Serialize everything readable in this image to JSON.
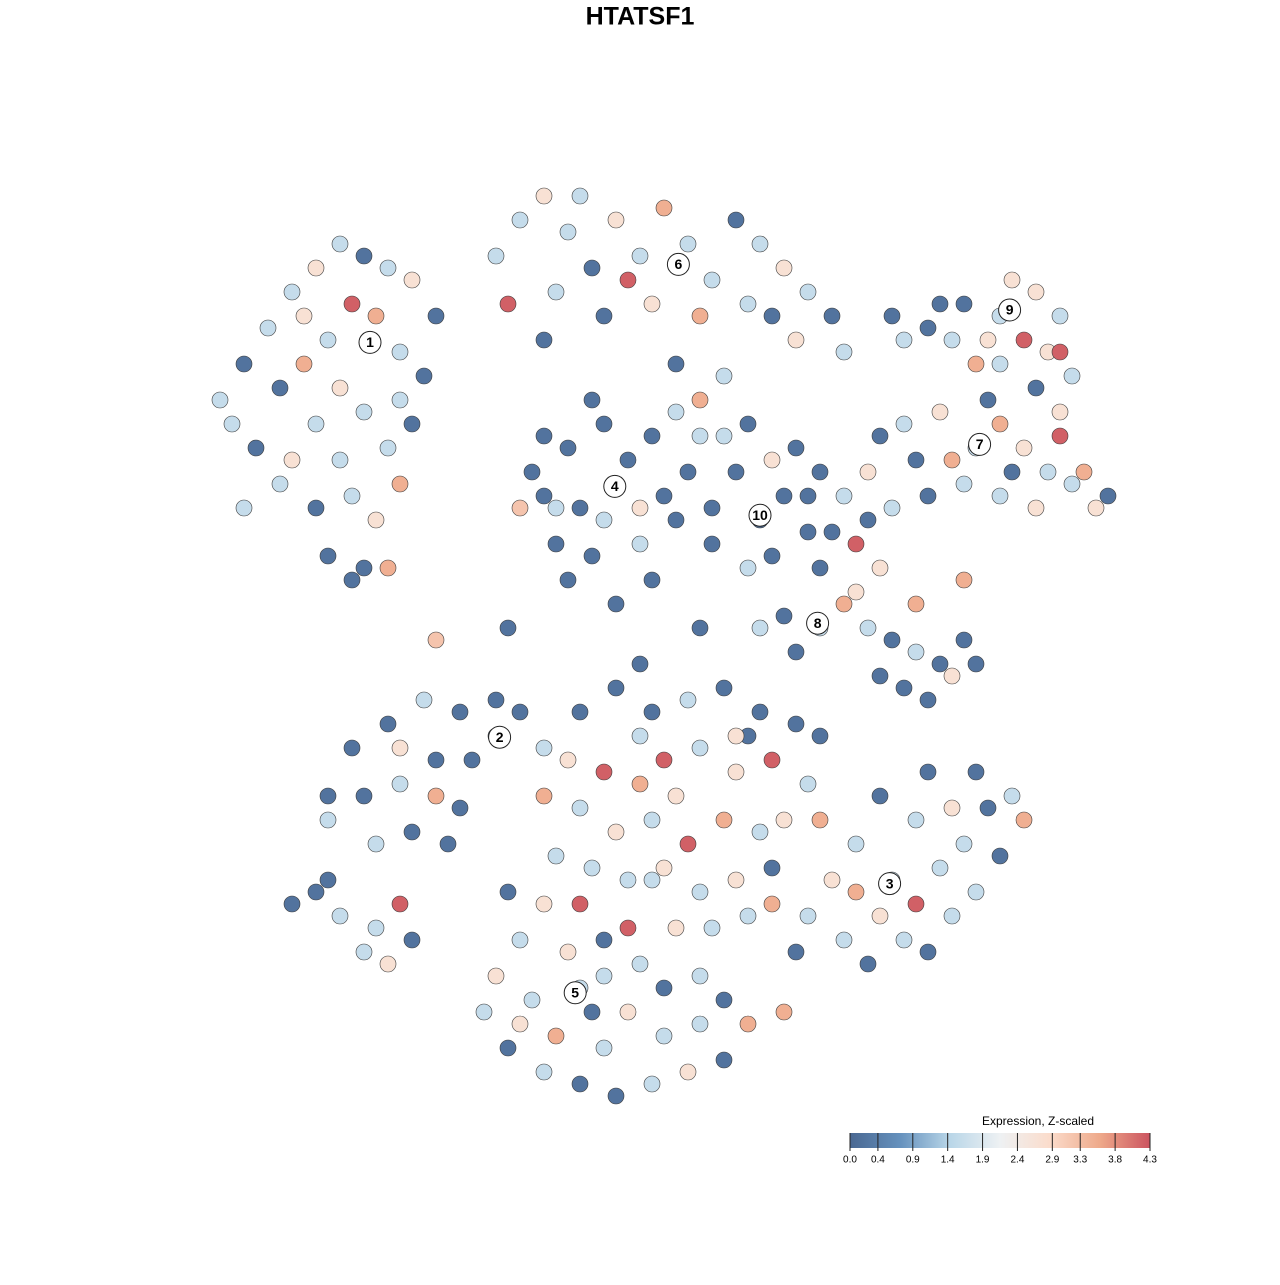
{
  "chart_data": {
    "type": "scatter",
    "title": "HTATSF1",
    "xlim": [
      -45,
      45
    ],
    "ylim": [
      -45,
      45
    ],
    "x": [
      -35,
      -33,
      -34,
      -31,
      -29,
      -27,
      -25,
      -23,
      -21,
      -19,
      -24,
      -22,
      -26,
      -28,
      -30,
      -25,
      -20,
      -18,
      -23,
      -27,
      -29,
      -25,
      -21,
      -19,
      -24,
      -27,
      -22,
      -20,
      -26,
      -23,
      -24,
      -30,
      -32,
      -17,
      -20,
      -28,
      -33,
      -21,
      -12,
      -10,
      -8,
      -6,
      -4,
      -2,
      0,
      2,
      4,
      6,
      8,
      10,
      12,
      14,
      16,
      -11,
      -7,
      -3,
      1,
      5,
      9,
      13,
      3,
      7,
      -8,
      -1,
      11,
      17,
      5,
      -5,
      -2,
      -8,
      -6,
      -3,
      1,
      4,
      3,
      0,
      -4,
      -7,
      -9,
      -5,
      2,
      -1,
      -6,
      5,
      -10,
      -3,
      1,
      -4,
      6,
      -8,
      3,
      -2,
      -7,
      0,
      10,
      8,
      12,
      11,
      9,
      13,
      7,
      14,
      6,
      11,
      15,
      9,
      30,
      27,
      24,
      22,
      33,
      35,
      34,
      32,
      36,
      29,
      26,
      31,
      28,
      25,
      35,
      33,
      21,
      30,
      35,
      28,
      25,
      22,
      20,
      26,
      30,
      32,
      34,
      36,
      38,
      39,
      30,
      33,
      27,
      23,
      31,
      35,
      19,
      24,
      37,
      29,
      21,
      15,
      12,
      10,
      13,
      17,
      19,
      21,
      23,
      25,
      27,
      22,
      26,
      20,
      18,
      23,
      27,
      16,
      18,
      15,
      20,
      17,
      19,
      14,
      24,
      28,
      -12,
      -15,
      -18,
      -21,
      -24,
      -26,
      -23,
      -20,
      -17,
      -14,
      -10,
      -8,
      -19,
      -16,
      -22,
      -26,
      -17,
      -12,
      -20,
      -15,
      -5,
      -2,
      1,
      4,
      7,
      10,
      13,
      15,
      -6,
      -3,
      0,
      2,
      5,
      8,
      11,
      14,
      -5,
      -2,
      1,
      4,
      7,
      10,
      12,
      -4,
      -1,
      2,
      5,
      8,
      11,
      -7,
      -5,
      3,
      6,
      9,
      -3,
      0,
      3,
      9,
      -8,
      0,
      21,
      18,
      16,
      14,
      13,
      17,
      20,
      23,
      25,
      27,
      29,
      31,
      32,
      26,
      23,
      20,
      24,
      28,
      22,
      19,
      26,
      30,
      15,
      18,
      11,
      24,
      28,
      -5,
      -10,
      -12,
      -13,
      -11,
      -8,
      -5,
      -2,
      1,
      4,
      7,
      9,
      5,
      2,
      -1,
      -3,
      0,
      -6,
      -9,
      -7,
      -3,
      -1,
      -8,
      2,
      -11,
      5,
      7,
      -4,
      -10,
      -29,
      -27,
      -25,
      -22,
      -20,
      -23,
      -21,
      -19,
      -26,
      -17,
      -11,
      5,
      12,
      1,
      8
    ],
    "y": [
      20,
      23,
      18,
      26,
      29,
      31,
      33,
      32,
      31,
      30,
      28,
      27,
      25,
      23,
      21,
      21,
      24,
      22,
      19,
      18,
      15,
      15,
      16,
      18,
      12,
      11,
      10,
      13,
      7,
      6,
      5,
      13,
      16,
      27,
      20,
      27,
      11,
      6,
      32,
      35,
      37,
      34,
      31,
      35,
      32,
      36,
      33,
      30,
      35,
      33,
      31,
      29,
      27,
      28,
      29,
      27,
      28,
      27,
      28,
      25,
      23,
      22,
      25,
      30,
      27,
      24,
      20,
      37,
      13,
      12,
      16,
      18,
      17,
      14,
      10,
      8,
      7,
      8,
      14,
      11,
      12,
      15,
      5,
      17,
      11,
      10,
      5,
      20,
      11,
      17,
      19,
      3,
      11,
      11,
      10,
      14,
      12,
      7,
      6,
      16,
      17,
      9,
      8,
      15,
      14,
      18,
      27,
      28,
      26,
      25,
      29,
      27,
      24,
      25,
      22,
      25,
      25,
      30,
      23,
      28,
      19,
      21,
      27,
      23,
      24,
      16,
      19,
      18,
      17,
      15,
      18,
      16,
      14,
      13,
      11,
      12,
      12,
      11,
      13,
      15,
      14,
      17,
      14,
      12,
      14,
      20,
      11,
      1,
      2,
      1,
      -1,
      3,
      1,
      0,
      -1,
      -2,
      0,
      -4,
      -3,
      -3,
      4,
      3,
      5,
      9,
      8,
      6,
      6,
      12,
      10,
      12,
      -5,
      -2,
      -8,
      -6,
      -5,
      -7,
      -9,
      -13,
      -13,
      -12,
      -10,
      -10,
      -6,
      -9,
      -16,
      -17,
      -17,
      -15,
      -13,
      -5,
      -9,
      -14,
      -6,
      -4,
      -6,
      -5,
      -4,
      -6,
      -7,
      -8,
      -10,
      -11,
      -12,
      -10,
      -9,
      -11,
      -10,
      -12,
      -14,
      -16,
      -15,
      -17,
      -15,
      -16,
      -15,
      -19,
      -20,
      -19,
      -21,
      -20,
      -19,
      -18,
      -22,
      -24,
      -24,
      -23,
      -25,
      -8,
      -13,
      -8,
      -13,
      -2,
      -20,
      -17,
      -20,
      -23,
      -26,
      -25,
      -23,
      -22,
      -19,
      -17,
      -14,
      -13,
      -15,
      -14,
      -15,
      -13,
      -11,
      -11,
      -25,
      -27,
      -23,
      -18,
      -15,
      -21,
      -22,
      -26,
      -21,
      -29,
      -25,
      -28,
      -31,
      -34,
      -36,
      -37,
      -38,
      -37,
      -36,
      -35,
      -32,
      -32,
      -33,
      -31,
      -28,
      -27,
      -26,
      -30,
      -33,
      -34,
      -24,
      -22,
      -29,
      -21,
      -28,
      -30,
      -31,
      -32,
      -22,
      -21,
      -23,
      -24,
      -22,
      -26,
      -27,
      -25,
      -20,
      0,
      1,
      1,
      -31,
      -20,
      -8
    ],
    "values": [
      1.6,
      0.2,
      1.6,
      1.6,
      1.6,
      2.7,
      1.6,
      0.2,
      1.6,
      2.7,
      4.2,
      3.5,
      1.6,
      3.5,
      0.2,
      2.7,
      1.6,
      0.2,
      1.6,
      1.6,
      2.7,
      1.6,
      1.6,
      0.2,
      1.6,
      0.2,
      2.7,
      3.5,
      0.2,
      0.2,
      0.2,
      1.6,
      0.2,
      0.2,
      1.6,
      2.7,
      1.6,
      3.5,
      1.6,
      1.6,
      2.7,
      1.6,
      0.2,
      2.7,
      1.6,
      3.5,
      1.6,
      1.6,
      0.2,
      1.6,
      2.7,
      1.6,
      0.2,
      4.2,
      1.6,
      0.2,
      2.7,
      3.5,
      1.6,
      2.7,
      0.2,
      1.6,
      0.2,
      4.2,
      0.2,
      1.6,
      3.5,
      1.6,
      1.6,
      0.2,
      0.2,
      0.2,
      0.2,
      0.2,
      0.2,
      1.6,
      0.2,
      0.2,
      0.2,
      0.2,
      0.2,
      0.2,
      0.2,
      1.6,
      3.2,
      1.6,
      0.2,
      0.2,
      0.2,
      0.2,
      1.6,
      0.2,
      1.6,
      2.7,
      0.2,
      0.2,
      0.2,
      0.2,
      1.6,
      0.2,
      1.6,
      0.2,
      0.2,
      2.7,
      0.2,
      0.2,
      1.6,
      0.2,
      0.2,
      1.6,
      2.7,
      1.6,
      2.7,
      4.2,
      1.6,
      2.7,
      1.6,
      2.7,
      3.5,
      0.2,
      2.7,
      0.2,
      0.2,
      1.6,
      4.2,
      1.6,
      2.7,
      1.6,
      0.2,
      3.5,
      3.5,
      2.7,
      1.6,
      1.6,
      2.7,
      0.2,
      1.6,
      2.7,
      1.6,
      0.2,
      0.2,
      4.2,
      2.7,
      0.2,
      3.5,
      0.2,
      1.6,
      1.6,
      0.2,
      1.6,
      0.2,
      3.5,
      1.6,
      0.2,
      1.6,
      0.2,
      0.2,
      0.2,
      2.7,
      0.2,
      2.7,
      3.5,
      3.5,
      0.2,
      4.2,
      0.2,
      2.7,
      1.6,
      0.2,
      0.2,
      0.2,
      0.2,
      0.2,
      0.2,
      1.6,
      0.2,
      0.2,
      0.2,
      0.2,
      1.6,
      0.2,
      0.2,
      0.2,
      1.6,
      0.2,
      0.2,
      1.6,
      1.6,
      3.5,
      0.2,
      2.7,
      0.2,
      0.2,
      0.2,
      0.2,
      1.6,
      0.2,
      0.2,
      0.2,
      0.2,
      2.7,
      4.2,
      3.5,
      4.2,
      1.6,
      2.7,
      4.2,
      1.6,
      1.6,
      2.7,
      1.6,
      4.2,
      3.5,
      1.6,
      2.7,
      1.6,
      1.6,
      2.7,
      1.6,
      2.7,
      0.2,
      1.6,
      4.2,
      2.7,
      1.6,
      1.6,
      0.2,
      1.6,
      2.7,
      0.2,
      3.5,
      0.2,
      1.6,
      1.6,
      2.7,
      1.6,
      0.2,
      1.6,
      2.7,
      4.2,
      1.6,
      1.6,
      0.2,
      1.6,
      3.5,
      2.7,
      1.6,
      0.2,
      0.2,
      0.2,
      1.6,
      0.2,
      1.6,
      0.2,
      3.5,
      3.5,
      3.5,
      0.2,
      1.6,
      1.6,
      1.6,
      2.7,
      1.6,
      0.2,
      1.6,
      0.2,
      0.2,
      1.6,
      2.7,
      0.2,
      3.5,
      1.6,
      1.6,
      2.7,
      1.6,
      1.6,
      2.7,
      1.6,
      3.5,
      1.6,
      4.2,
      2.7,
      0.2,
      0.2,
      1.6,
      0.2,
      0.2,
      2.7,
      0.2,
      0.2,
      1.6,
      1.6,
      4.2,
      1.6,
      2.7,
      0.2,
      0.2,
      3.2,
      0.2,
      0.2,
      3.5,
      1.6,
      2.7
    ],
    "annotations": [
      {
        "text": "1",
        "x": -22.5,
        "y": 24.8
      },
      {
        "text": "2",
        "x": -11.7,
        "y": -8.1
      },
      {
        "text": "3",
        "x": 20.8,
        "y": -20.3
      },
      {
        "text": "4",
        "x": -2.1,
        "y": 12.8
      },
      {
        "text": "5",
        "x": -5.4,
        "y": -29.4
      },
      {
        "text": "6",
        "x": 3.2,
        "y": 31.3
      },
      {
        "text": "7",
        "x": 28.3,
        "y": 16.3
      },
      {
        "text": "8",
        "x": 14.8,
        "y": 1.4
      },
      {
        "text": "9",
        "x": 30.8,
        "y": 27.5
      },
      {
        "text": "10",
        "x": 10,
        "y": 10.4
      }
    ],
    "colorbar": {
      "title": "Expression, Z-scaled",
      "lim": [
        0,
        4.3
      ],
      "ticks": [
        {
          "value": 0,
          "label": "0.0"
        },
        0.4,
        0.9,
        1.4,
        1.9,
        2.4,
        2.9,
        3.3,
        3.8,
        4.3
      ],
      "colors": [
        "#4a6892",
        "#6591bd",
        "#b9d6e8",
        "#eef1f3",
        "#fbdccb",
        "#eea98a",
        "#cc5460"
      ]
    }
  }
}
